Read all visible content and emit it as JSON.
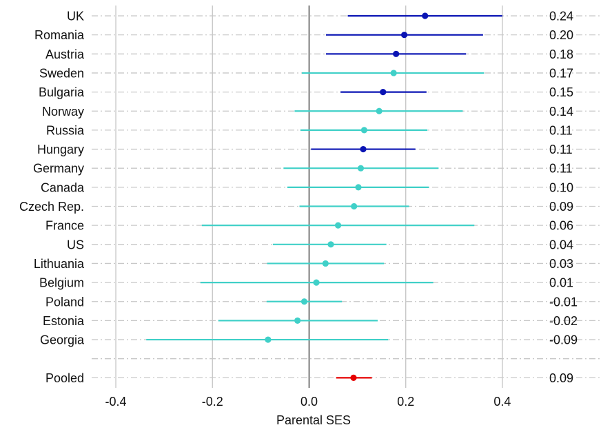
{
  "chart_data": {
    "type": "forest",
    "xlabel": "Parental SES",
    "xlim": [
      -0.45,
      0.47
    ],
    "x_ticks": [
      -0.4,
      -0.2,
      0.0,
      0.2,
      0.4
    ],
    "x_tick_labels": [
      "-0.4",
      "-0.2",
      "0.0",
      "0.2",
      "0.4"
    ],
    "grid": true,
    "colors": {
      "significant": "#0a14b4",
      "non_significant": "#40d0c8",
      "pooled": "#e60000",
      "zero_line": "#555555",
      "grid": "#c8c8c8"
    },
    "rows": [
      {
        "label": "UK",
        "estimate": 0.24,
        "lower": 0.08,
        "upper": 0.4,
        "value_label": "0.24",
        "group": "significant"
      },
      {
        "label": "Romania",
        "estimate": 0.197,
        "lower": 0.035,
        "upper": 0.36,
        "value_label": "0.20",
        "group": "significant"
      },
      {
        "label": "Austria",
        "estimate": 0.18,
        "lower": 0.035,
        "upper": 0.325,
        "value_label": "0.18",
        "group": "significant"
      },
      {
        "label": "Sweden",
        "estimate": 0.175,
        "lower": -0.015,
        "upper": 0.362,
        "value_label": "0.17",
        "group": "non_significant"
      },
      {
        "label": "Bulgaria",
        "estimate": 0.153,
        "lower": 0.065,
        "upper": 0.243,
        "value_label": "0.15",
        "group": "significant"
      },
      {
        "label": "Norway",
        "estimate": 0.145,
        "lower": -0.03,
        "upper": 0.318,
        "value_label": "0.14",
        "group": "non_significant"
      },
      {
        "label": "Russia",
        "estimate": 0.114,
        "lower": -0.018,
        "upper": 0.245,
        "value_label": "0.11",
        "group": "non_significant"
      },
      {
        "label": "Hungary",
        "estimate": 0.112,
        "lower": 0.004,
        "upper": 0.22,
        "value_label": "0.11",
        "group": "significant"
      },
      {
        "label": "Germany",
        "estimate": 0.107,
        "lower": -0.053,
        "upper": 0.268,
        "value_label": "0.11",
        "group": "non_significant"
      },
      {
        "label": "Canada",
        "estimate": 0.102,
        "lower": -0.045,
        "upper": 0.248,
        "value_label": "0.10",
        "group": "non_significant"
      },
      {
        "label": "Czech Rep.",
        "estimate": 0.093,
        "lower": -0.02,
        "upper": 0.207,
        "value_label": "0.09",
        "group": "non_significant"
      },
      {
        "label": "France",
        "estimate": 0.06,
        "lower": -0.222,
        "upper": 0.342,
        "value_label": "0.06",
        "group": "non_significant"
      },
      {
        "label": "US",
        "estimate": 0.045,
        "lower": -0.075,
        "upper": 0.16,
        "value_label": "0.04",
        "group": "non_significant"
      },
      {
        "label": "Lithuania",
        "estimate": 0.034,
        "lower": -0.087,
        "upper": 0.155,
        "value_label": "0.03",
        "group": "non_significant"
      },
      {
        "label": "Belgium",
        "estimate": 0.015,
        "lower": -0.225,
        "upper": 0.257,
        "value_label": "0.01",
        "group": "non_significant"
      },
      {
        "label": "Poland",
        "estimate": -0.01,
        "lower": -0.088,
        "upper": 0.068,
        "value_label": "-0.01",
        "group": "non_significant"
      },
      {
        "label": "Estonia",
        "estimate": -0.024,
        "lower": -0.188,
        "upper": 0.142,
        "value_label": "-0.02",
        "group": "non_significant"
      },
      {
        "label": "Georgia",
        "estimate": -0.085,
        "lower": -0.337,
        "upper": 0.164,
        "value_label": "-0.09",
        "group": "non_significant"
      },
      {
        "label": "",
        "value_label": "",
        "group": "blank"
      },
      {
        "label": "Pooled",
        "estimate": 0.092,
        "lower": 0.056,
        "upper": 0.13,
        "value_label": "0.09",
        "group": "pooled"
      }
    ]
  }
}
